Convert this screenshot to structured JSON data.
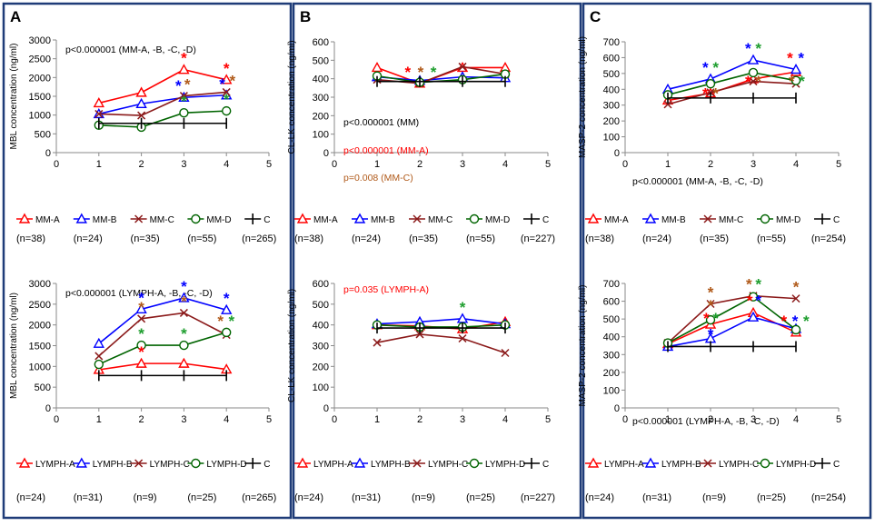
{
  "colors": {
    "A": "#ff0000",
    "B": "#0000ff",
    "C": "#8b1a1a",
    "D": "#006400",
    "Ctrl": "#000000",
    "brown": "#b05a1a",
    "green": "#1e9e2e",
    "frame": "#1f3c78"
  },
  "chart_data": [
    {
      "type": "line",
      "panel": "A",
      "title": "",
      "ylabel": "MBL concentration (ng/ml)",
      "ylim": [
        0,
        3000
      ],
      "yticks": [
        0,
        500,
        1000,
        1500,
        2000,
        2500,
        3000
      ],
      "xlim": [
        0,
        5
      ],
      "xticks": [
        0,
        1,
        2,
        3,
        4,
        5
      ],
      "annotations": [
        {
          "text": "p<0.000001 (MM-A, -B, -C, -D)",
          "color": "#000000"
        }
      ],
      "series": [
        {
          "name": "MM-A",
          "key": "A",
          "x": [
            1,
            2,
            3,
            4
          ],
          "values": [
            1320,
            1600,
            2210,
            1940
          ]
        },
        {
          "name": "MM-B",
          "key": "B",
          "x": [
            1,
            2,
            3,
            4
          ],
          "values": [
            1030,
            1300,
            1470,
            1530
          ]
        },
        {
          "name": "MM-C",
          "key": "C",
          "x": [
            1,
            2,
            3,
            4
          ],
          "values": [
            1030,
            990,
            1510,
            1610
          ]
        },
        {
          "name": "MM-D",
          "key": "D",
          "x": [
            1,
            2,
            3,
            4
          ],
          "values": [
            730,
            680,
            1060,
            1110
          ]
        },
        {
          "name": "C",
          "key": "Ctrl",
          "x": [
            1,
            2,
            3,
            4
          ],
          "values": [
            780,
            780,
            780,
            780
          ]
        }
      ],
      "stars": [
        {
          "x": 3,
          "y": 2210,
          "c": "A"
        },
        {
          "x": 4,
          "y": 1940,
          "c": "A"
        },
        {
          "x": 2.87,
          "y": 1470,
          "c": "B"
        },
        {
          "x": 3.08,
          "y": 1510,
          "c": "brown"
        },
        {
          "x": 3,
          "y": 1060,
          "c": "green"
        },
        {
          "x": 3.9,
          "y": 1530,
          "c": "B"
        },
        {
          "x": 4.14,
          "y": 1610,
          "c": "brown"
        },
        {
          "x": 4,
          "y": 1110,
          "c": "green"
        }
      ],
      "ns": [
        "(n=38)",
        "(n=24)",
        "(n=35)",
        "(n=55)",
        "(n=265)"
      ]
    },
    {
      "type": "line",
      "panel": "A2",
      "title": "",
      "ylabel": "MBL concentration (ng/ml)",
      "ylim": [
        0,
        3000
      ],
      "yticks": [
        0,
        500,
        1000,
        1500,
        2000,
        2500,
        3000
      ],
      "xlim": [
        0,
        5
      ],
      "xticks": [
        0,
        1,
        2,
        3,
        4,
        5
      ],
      "annotations": [
        {
          "text": "p<0.000001 (LYMPH-A, -B, -C, -D)",
          "color": "#000000"
        }
      ],
      "series": [
        {
          "name": "LYMPH-A",
          "key": "A",
          "x": [
            1,
            2,
            3,
            4
          ],
          "values": [
            920,
            1070,
            1070,
            930
          ]
        },
        {
          "name": "LYMPH-B",
          "key": "B",
          "x": [
            1,
            2,
            3,
            4
          ],
          "values": [
            1550,
            2380,
            2650,
            2360
          ]
        },
        {
          "name": "LYMPH-C",
          "key": "C",
          "x": [
            1,
            2,
            3,
            4
          ],
          "values": [
            1250,
            2150,
            2290,
            1760
          ]
        },
        {
          "name": "LYMPH-D",
          "key": "D",
          "x": [
            1,
            2,
            3,
            4
          ],
          "values": [
            1050,
            1510,
            1510,
            1820
          ]
        },
        {
          "name": "C",
          "key": "Ctrl",
          "x": [
            1,
            2,
            3,
            4
          ],
          "values": [
            780,
            780,
            780,
            780
          ]
        }
      ],
      "stars": [
        {
          "x": 2,
          "y": 2380,
          "c": "B"
        },
        {
          "x": 2,
          "y": 2150,
          "c": "brown"
        },
        {
          "x": 2,
          "y": 1510,
          "c": "green"
        },
        {
          "x": 2,
          "y": 1070,
          "c": "A"
        },
        {
          "x": 3,
          "y": 2650,
          "c": "B"
        },
        {
          "x": 3,
          "y": 2290,
          "c": "brown"
        },
        {
          "x": 3,
          "y": 1510,
          "c": "green"
        },
        {
          "x": 4,
          "y": 2360,
          "c": "B"
        },
        {
          "x": 3.86,
          "y": 1820,
          "c": "brown"
        },
        {
          "x": 4.12,
          "y": 1820,
          "c": "green"
        }
      ],
      "ns": [
        "(n=24)",
        "(n=31)",
        "(n=9)",
        "(n=25)",
        "(n=265)"
      ]
    },
    {
      "type": "line",
      "panel": "B",
      "title": "",
      "ylabel": "CL-LK concentration (ng/ml)",
      "ylim": [
        0,
        600
      ],
      "yticks": [
        0,
        100,
        200,
        300,
        400,
        500,
        600
      ],
      "xlim": [
        0,
        5
      ],
      "xticks": [
        0,
        1,
        2,
        3,
        4,
        5
      ],
      "annotations": [
        {
          "text": "p<0.000001 (MM)",
          "color": "#000000"
        },
        {
          "text": "p<0.000001 (MM-A)",
          "color": "#ff0000"
        },
        {
          "text": "p=0.008 (MM-C)",
          "color": "#b05a1a"
        }
      ],
      "series": [
        {
          "name": "MM-A",
          "key": "A",
          "x": [
            1,
            2,
            3,
            4
          ],
          "values": [
            460,
            375,
            460,
            460
          ]
        },
        {
          "name": "MM-B",
          "key": "B",
          "x": [
            1,
            2,
            3,
            4
          ],
          "values": [
            410,
            390,
            410,
            405
          ]
        },
        {
          "name": "MM-C",
          "key": "C",
          "x": [
            1,
            2,
            3,
            4
          ],
          "values": [
            395,
            375,
            465,
            425
          ]
        },
        {
          "name": "MM-D",
          "key": "D",
          "x": [
            1,
            2,
            3,
            4
          ],
          "values": [
            415,
            380,
            395,
            425
          ]
        },
        {
          "name": "C",
          "key": "Ctrl",
          "x": [
            1,
            2,
            3,
            4
          ],
          "values": [
            385,
            385,
            385,
            385
          ]
        }
      ],
      "stars": [
        {
          "x": 1.72,
          "y": 375,
          "c": "A"
        },
        {
          "x": 2.02,
          "y": 375,
          "c": "brown"
        },
        {
          "x": 2.32,
          "y": 375,
          "c": "green"
        }
      ],
      "ns": [
        "(n=38)",
        "(n=24)",
        "(n=35)",
        "(n=55)",
        "(n=227)"
      ]
    },
    {
      "type": "line",
      "panel": "B2",
      "title": "",
      "ylabel": "CL-LK concentration (ng/ml)",
      "ylim": [
        0,
        600
      ],
      "yticks": [
        0,
        100,
        200,
        300,
        400,
        500,
        600
      ],
      "xlim": [
        0,
        5
      ],
      "xticks": [
        0,
        1,
        2,
        3,
        4,
        5
      ],
      "annotations": [
        {
          "text": "p=0.035 (LYMPH-A)",
          "color": "#ff0000"
        }
      ],
      "series": [
        {
          "name": "LYMPH-A",
          "key": "A",
          "x": [
            1,
            2,
            3,
            4
          ],
          "values": [
            400,
            395,
            380,
            415
          ]
        },
        {
          "name": "LYMPH-B",
          "key": "B",
          "x": [
            1,
            2,
            3,
            4
          ],
          "values": [
            405,
            415,
            430,
            405
          ]
        },
        {
          "name": "LYMPH-C",
          "key": "C",
          "x": [
            1,
            2,
            3,
            4
          ],
          "values": [
            315,
            355,
            335,
            265
          ]
        },
        {
          "name": "LYMPH-D",
          "key": "D",
          "x": [
            1,
            2,
            3,
            4
          ],
          "values": [
            400,
            390,
            390,
            400
          ]
        },
        {
          "name": "C",
          "key": "Ctrl",
          "x": [
            1,
            2,
            3,
            4
          ],
          "values": [
            385,
            385,
            385,
            385
          ]
        }
      ],
      "stars": [
        {
          "x": 3,
          "y": 430,
          "c": "green"
        }
      ],
      "ns": [
        "(n=24)",
        "(n=31)",
        "(n=9)",
        "(n=25)",
        "(n=227)"
      ]
    },
    {
      "type": "line",
      "panel": "C",
      "title": "",
      "ylabel": "MASP-2 concentration (ng/ml)",
      "ylim": [
        0,
        700
      ],
      "yticks": [
        0,
        100,
        200,
        300,
        400,
        500,
        600,
        700
      ],
      "xlim": [
        0,
        5
      ],
      "xticks": [
        0,
        1,
        2,
        3,
        4,
        5
      ],
      "annotations": [
        {
          "text": "p<0.000001 (MM-A, -B, -C, -D)",
          "color": "#000000"
        }
      ],
      "series": [
        {
          "name": "MM-A",
          "key": "A",
          "x": [
            1,
            2,
            3,
            4
          ],
          "values": [
            330,
            375,
            465,
            510
          ]
        },
        {
          "name": "MM-B",
          "key": "B",
          "x": [
            1,
            2,
            3,
            4
          ],
          "values": [
            400,
            465,
            585,
            525
          ]
        },
        {
          "name": "MM-C",
          "key": "C",
          "x": [
            1,
            2,
            3,
            4
          ],
          "values": [
            305,
            380,
            450,
            435
          ]
        },
        {
          "name": "MM-D",
          "key": "D",
          "x": [
            1,
            2,
            3,
            4
          ],
          "values": [
            365,
            435,
            505,
            455
          ]
        },
        {
          "name": "C",
          "key": "Ctrl",
          "x": [
            1,
            2,
            3,
            4
          ],
          "values": [
            345,
            345,
            345,
            345
          ]
        }
      ],
      "stars": [
        {
          "x": 1.88,
          "y": 465,
          "c": "B"
        },
        {
          "x": 2.12,
          "y": 465,
          "c": "green"
        },
        {
          "x": 1.88,
          "y": 300,
          "c": "A"
        },
        {
          "x": 2.12,
          "y": 300,
          "c": "brown"
        },
        {
          "x": 2.88,
          "y": 585,
          "c": "B"
        },
        {
          "x": 3.12,
          "y": 585,
          "c": "green"
        },
        {
          "x": 2.88,
          "y": 380,
          "c": "A"
        },
        {
          "x": 3.12,
          "y": 380,
          "c": "brown"
        },
        {
          "x": 3.86,
          "y": 525,
          "c": "A"
        },
        {
          "x": 4.12,
          "y": 525,
          "c": "B"
        },
        {
          "x": 3.9,
          "y": 380,
          "c": "brown"
        },
        {
          "x": 4.14,
          "y": 380,
          "c": "green"
        }
      ],
      "ns": [
        "(n=38)",
        "(n=24)",
        "(n=35)",
        "(n=55)",
        "(n=254)"
      ]
    },
    {
      "type": "line",
      "panel": "C2",
      "title": "",
      "ylabel": "MASP-2 concentration (ng/ml)",
      "ylim": [
        0,
        700
      ],
      "yticks": [
        0,
        100,
        200,
        300,
        400,
        500,
        600,
        700
      ],
      "xlim": [
        0,
        5
      ],
      "xticks": [
        0,
        1,
        2,
        3,
        4,
        5
      ],
      "annotations": [
        {
          "text": "p<0.000001 (LYMPH-A, -B, -C, -D)",
          "color": "#000000"
        }
      ],
      "series": [
        {
          "name": "LYMPH-A",
          "key": "A",
          "x": [
            1,
            2,
            3,
            4
          ],
          "values": [
            360,
            470,
            535,
            425
          ]
        },
        {
          "name": "LYMPH-B",
          "key": "B",
          "x": [
            1,
            2,
            3,
            4
          ],
          "values": [
            345,
            390,
            510,
            445
          ]
        },
        {
          "name": "LYMPH-C",
          "key": "C",
          "x": [
            1,
            2,
            3,
            4
          ],
          "values": [
            365,
            585,
            630,
            615
          ]
        },
        {
          "name": "LYMPH-D",
          "key": "D",
          "x": [
            1,
            2,
            3,
            4
          ],
          "values": [
            365,
            495,
            625,
            440
          ]
        },
        {
          "name": "C",
          "key": "Ctrl",
          "x": [
            1,
            2,
            3,
            4
          ],
          "values": [
            345,
            345,
            345,
            345
          ]
        }
      ],
      "stars": [
        {
          "x": 2,
          "y": 585,
          "c": "brown"
        },
        {
          "x": 2,
          "y": 510,
          "c": "brown"
        },
        {
          "x": 1.9,
          "y": 440,
          "c": "A"
        },
        {
          "x": 2.12,
          "y": 440,
          "c": "green"
        },
        {
          "x": 2,
          "y": 350,
          "c": "B"
        },
        {
          "x": 2.9,
          "y": 630,
          "c": "brown"
        },
        {
          "x": 3.12,
          "y": 630,
          "c": "green"
        },
        {
          "x": 2.92,
          "y": 540,
          "c": "A"
        },
        {
          "x": 3.12,
          "y": 540,
          "c": "B"
        },
        {
          "x": 4,
          "y": 615,
          "c": "brown"
        },
        {
          "x": 3.72,
          "y": 425,
          "c": "A"
        },
        {
          "x": 3.98,
          "y": 425,
          "c": "B"
        },
        {
          "x": 4.24,
          "y": 425,
          "c": "green"
        }
      ],
      "ns": [
        "(n=24)",
        "(n=31)",
        "(n=9)",
        "(n=25)",
        "(n=254)"
      ]
    }
  ],
  "panel_labels": [
    "A",
    "B",
    "C"
  ]
}
